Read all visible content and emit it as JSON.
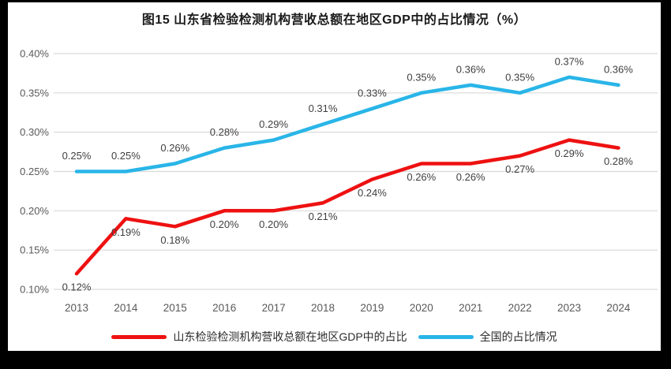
{
  "title": "图15  山东省检验检测机构营收总额在地区GDP中的占比情况（%）",
  "colors": {
    "frame": "#000000",
    "background": "#ffffff",
    "grid": "#d9d9d9",
    "axis_text": "#595959",
    "data_label_text": "#3f3f3f"
  },
  "chart_data": {
    "type": "line",
    "title": "图15  山东省检验检测机构营收总额在地区GDP中的占比情况（%）",
    "x": [
      "2013",
      "2014",
      "2015",
      "2016",
      "2017",
      "2018",
      "2019",
      "2020",
      "2021",
      "2022",
      "2023",
      "2024"
    ],
    "ylim": [
      0.1,
      0.4
    ],
    "yticks": [
      0.1,
      0.15,
      0.2,
      0.25,
      0.3,
      0.35,
      0.4
    ],
    "ytick_labels": [
      "0.10%",
      "0.15%",
      "0.20%",
      "0.25%",
      "0.30%",
      "0.35%",
      "0.40%"
    ],
    "grid": true,
    "legend_position": "bottom",
    "series": [
      {
        "name": "山东检验检测机构营收总额在地区GDP中的占比",
        "color": "#ee1111",
        "label_position": "below",
        "values": [
          0.12,
          0.19,
          0.18,
          0.2,
          0.2,
          0.21,
          0.24,
          0.26,
          0.26,
          0.27,
          0.29,
          0.28
        ],
        "labels": [
          "0.12%",
          "0.19%",
          "0.18%",
          "0.20%",
          "0.20%",
          "0.21%",
          "0.24%",
          "0.26%",
          "0.26%",
          "0.27%",
          "0.29%",
          "0.28%"
        ]
      },
      {
        "name": "全国的占比情况",
        "color": "#29b5e8",
        "label_position": "above",
        "values": [
          0.25,
          0.25,
          0.26,
          0.28,
          0.29,
          0.31,
          0.33,
          0.35,
          0.36,
          0.35,
          0.37,
          0.36
        ],
        "labels": [
          "0.25%",
          "0.25%",
          "0.26%",
          "0.28%",
          "0.29%",
          "0.31%",
          "0.33%",
          "0.35%",
          "0.36%",
          "0.35%",
          "0.37%",
          "0.36%"
        ]
      }
    ]
  }
}
